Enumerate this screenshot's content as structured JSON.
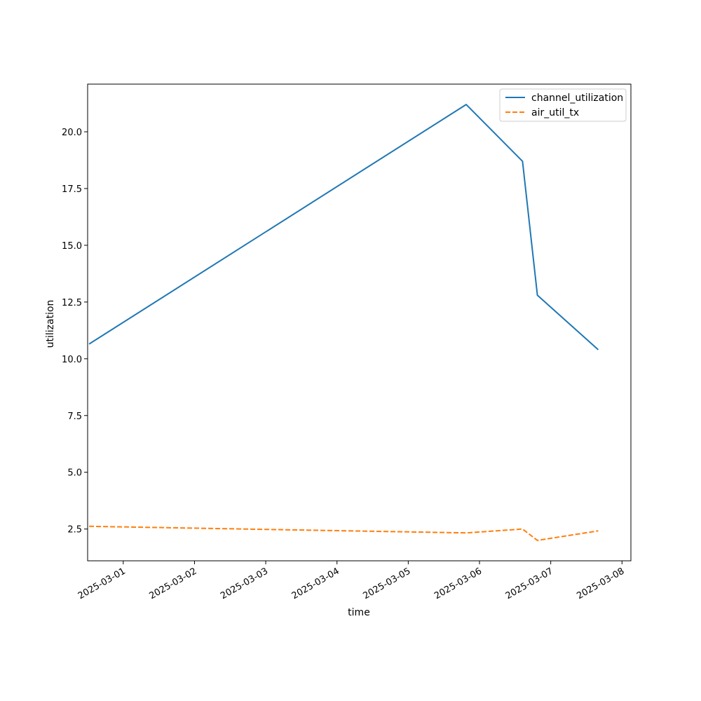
{
  "chart_data": {
    "type": "line",
    "xlabel": "time",
    "ylabel": "utilization",
    "x_axis": "date",
    "xlim": [
      "2025-02-28T12:00",
      "2025-03-08T03:00"
    ],
    "ylim": [
      1.1,
      22.1
    ],
    "xticks": [
      "2025-03-01",
      "2025-03-02",
      "2025-03-03",
      "2025-03-04",
      "2025-03-05",
      "2025-03-06",
      "2025-03-07",
      "2025-03-08"
    ],
    "yticks": [
      "2.5",
      "5.0",
      "7.5",
      "10.0",
      "12.5",
      "15.0",
      "17.5",
      "20.0"
    ],
    "legend_position": "top-right",
    "grid": false,
    "series": [
      {
        "name": "channel_utilization",
        "color": "#1f77b4",
        "dash": "solid",
        "points": [
          {
            "x": "2025-02-28T12:30",
            "y": 10.65
          },
          {
            "x": "2025-03-05T19:30",
            "y": 21.2
          },
          {
            "x": "2025-03-06T14:30",
            "y": 18.7
          },
          {
            "x": "2025-03-06T19:30",
            "y": 12.8
          },
          {
            "x": "2025-03-07T16:00",
            "y": 10.4
          }
        ]
      },
      {
        "name": "air_util_tx",
        "color": "#ff7f0e",
        "dash": "dashed",
        "points": [
          {
            "x": "2025-02-28T12:30",
            "y": 2.62
          },
          {
            "x": "2025-03-05T19:30",
            "y": 2.33
          },
          {
            "x": "2025-03-06T14:30",
            "y": 2.5
          },
          {
            "x": "2025-03-06T19:30",
            "y": 2.0
          },
          {
            "x": "2025-03-07T16:00",
            "y": 2.42
          }
        ]
      }
    ]
  }
}
